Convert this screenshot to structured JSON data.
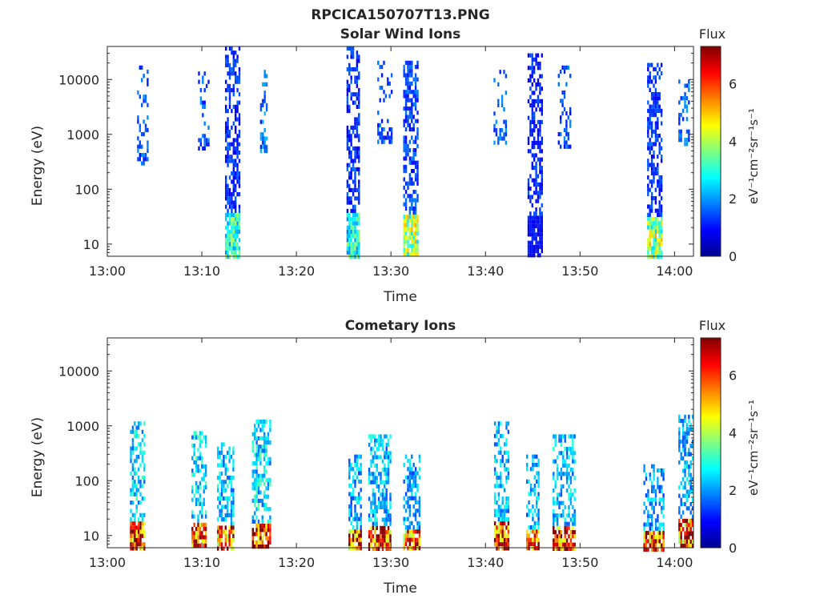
{
  "figure": {
    "title": "RPCICA150707T13.PNG",
    "colormap": [
      "#00008f",
      "#0000ff",
      "#0080ff",
      "#00ffff",
      "#80ff80",
      "#ffff00",
      "#ff8000",
      "#ff0000",
      "#800000"
    ]
  },
  "chart_data": [
    {
      "type": "heatmap",
      "title": "Solar Wind Ions",
      "xlabel": "Time",
      "ylabel": "Energy (eV)",
      "xticks": [
        "13:00",
        "13:10",
        "13:20",
        "13:30",
        "13:40",
        "13:50",
        "14:00"
      ],
      "xlim_minutes": [
        0,
        62
      ],
      "yscale": "log",
      "ylim": [
        6,
        40000
      ],
      "yticks": [
        "10",
        "100",
        "1000",
        "10000"
      ],
      "colorbar": {
        "title": "Flux",
        "label": "eV⁻¹cm⁻²sr⁻¹s⁻¹",
        "range": [
          0,
          7.3
        ],
        "ticks": [
          "0",
          "2",
          "4",
          "6"
        ]
      },
      "bursts": [
        {
          "t": 3.7,
          "width": 1.1,
          "emin": 300,
          "emax": 18000,
          "flux": 1.6,
          "lowflux": 1.6,
          "density": 0.28
        },
        {
          "t": 10.2,
          "width": 1.2,
          "emin": 600,
          "emax": 14000,
          "flux": 1.6,
          "lowflux": 1.6,
          "density": 0.3
        },
        {
          "t": 13.2,
          "width": 1.5,
          "emin": 6,
          "emax": 40000,
          "flux": 1.3,
          "lowflux": 3.2,
          "density": 0.55
        },
        {
          "t": 16.5,
          "width": 0.7,
          "emin": 500,
          "emax": 15000,
          "flux": 1.8,
          "lowflux": 1.8,
          "density": 0.3
        },
        {
          "t": 26.0,
          "width": 1.4,
          "emin": 6,
          "emax": 40000,
          "flux": 1.3,
          "lowflux": 3.0,
          "density": 0.55
        },
        {
          "t": 29.3,
          "width": 1.5,
          "emin": 700,
          "emax": 22000,
          "flux": 1.5,
          "lowflux": 1.5,
          "density": 0.25
        },
        {
          "t": 32.1,
          "width": 1.6,
          "emin": 6,
          "emax": 22000,
          "flux": 1.4,
          "lowflux": 4.0,
          "density": 0.55
        },
        {
          "t": 41.5,
          "width": 1.3,
          "emin": 700,
          "emax": 15000,
          "flux": 1.6,
          "lowflux": 1.6,
          "density": 0.25
        },
        {
          "t": 45.2,
          "width": 1.5,
          "emin": 6,
          "emax": 30000,
          "flux": 1.2,
          "lowflux": 1.0,
          "density": 0.55
        },
        {
          "t": 48.3,
          "width": 1.3,
          "emin": 600,
          "emax": 18000,
          "flux": 1.5,
          "lowflux": 1.5,
          "density": 0.25
        },
        {
          "t": 57.9,
          "width": 1.6,
          "emin": 6,
          "emax": 20000,
          "flux": 1.3,
          "lowflux": 4.0,
          "density": 0.55
        },
        {
          "t": 61.0,
          "width": 1.2,
          "emin": 700,
          "emax": 10000,
          "flux": 1.7,
          "lowflux": 1.7,
          "density": 0.3
        }
      ]
    },
    {
      "type": "heatmap",
      "title": "Cometary Ions",
      "xlabel": "Time",
      "ylabel": "Energy (eV)",
      "xticks": [
        "13:00",
        "13:10",
        "13:20",
        "13:30",
        "13:40",
        "13:50",
        "14:00"
      ],
      "xlim_minutes": [
        0,
        62
      ],
      "yscale": "log",
      "ylim": [
        6,
        40000
      ],
      "yticks": [
        "10",
        "100",
        "1000",
        "10000"
      ],
      "colorbar": {
        "title": "Flux",
        "label": "eV⁻¹cm⁻²sr⁻¹s⁻¹",
        "range": [
          0,
          7.3
        ],
        "ticks": [
          "0",
          "2",
          "4",
          "6"
        ]
      },
      "bursts": [
        {
          "t": 3.2,
          "width": 1.6,
          "emin": 6,
          "emax": 1200,
          "flux": 2.6,
          "lowflux": 6.8,
          "density": 0.5
        },
        {
          "t": 9.7,
          "width": 1.6,
          "emin": 6,
          "emax": 800,
          "flux": 2.6,
          "lowflux": 6.5,
          "density": 0.5
        },
        {
          "t": 12.5,
          "width": 1.8,
          "emin": 6,
          "emax": 500,
          "flux": 2.4,
          "lowflux": 6.0,
          "density": 0.5
        },
        {
          "t": 16.3,
          "width": 2.0,
          "emin": 6,
          "emax": 1300,
          "flux": 2.6,
          "lowflux": 6.8,
          "density": 0.55
        },
        {
          "t": 26.2,
          "width": 1.4,
          "emin": 6,
          "emax": 300,
          "flux": 2.2,
          "lowflux": 6.2,
          "density": 0.5
        },
        {
          "t": 28.8,
          "width": 2.4,
          "emin": 6,
          "emax": 700,
          "flux": 2.4,
          "lowflux": 6.6,
          "density": 0.55
        },
        {
          "t": 32.2,
          "width": 1.8,
          "emin": 6,
          "emax": 300,
          "flux": 2.2,
          "lowflux": 6.0,
          "density": 0.5
        },
        {
          "t": 41.7,
          "width": 1.6,
          "emin": 6,
          "emax": 1200,
          "flux": 2.4,
          "lowflux": 6.4,
          "density": 0.5
        },
        {
          "t": 45.0,
          "width": 1.4,
          "emin": 6,
          "emax": 300,
          "flux": 2.2,
          "lowflux": 6.0,
          "density": 0.5
        },
        {
          "t": 48.3,
          "width": 2.4,
          "emin": 6,
          "emax": 700,
          "flux": 2.4,
          "lowflux": 6.6,
          "density": 0.5
        },
        {
          "t": 57.8,
          "width": 2.2,
          "emin": 6,
          "emax": 200,
          "flux": 2.2,
          "lowflux": 6.4,
          "density": 0.5
        },
        {
          "t": 61.2,
          "width": 1.6,
          "emin": 6,
          "emax": 1600,
          "flux": 2.2,
          "lowflux": 6.2,
          "density": 0.5
        }
      ]
    }
  ]
}
